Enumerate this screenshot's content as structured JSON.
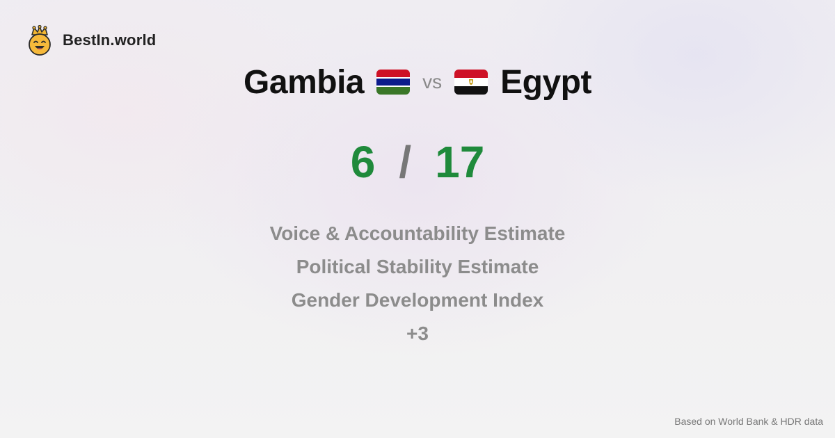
{
  "brand": {
    "name": "BestIn.world",
    "logo_icon": "crown-smiley-icon"
  },
  "matchup": {
    "left_country": "Gambia",
    "left_flag_icon": "gambia-flag-icon",
    "vs_label": "vs",
    "right_country": "Egypt",
    "right_flag_icon": "egypt-flag-icon"
  },
  "score": {
    "left": "6",
    "separator": "/",
    "right": "17",
    "color": "#1f8a3b"
  },
  "metrics": [
    "Voice & Accountability Estimate",
    "Political Stability Estimate",
    "Gender Development Index",
    "+3"
  ],
  "footer": {
    "source": "Based on World Bank & HDR data"
  }
}
